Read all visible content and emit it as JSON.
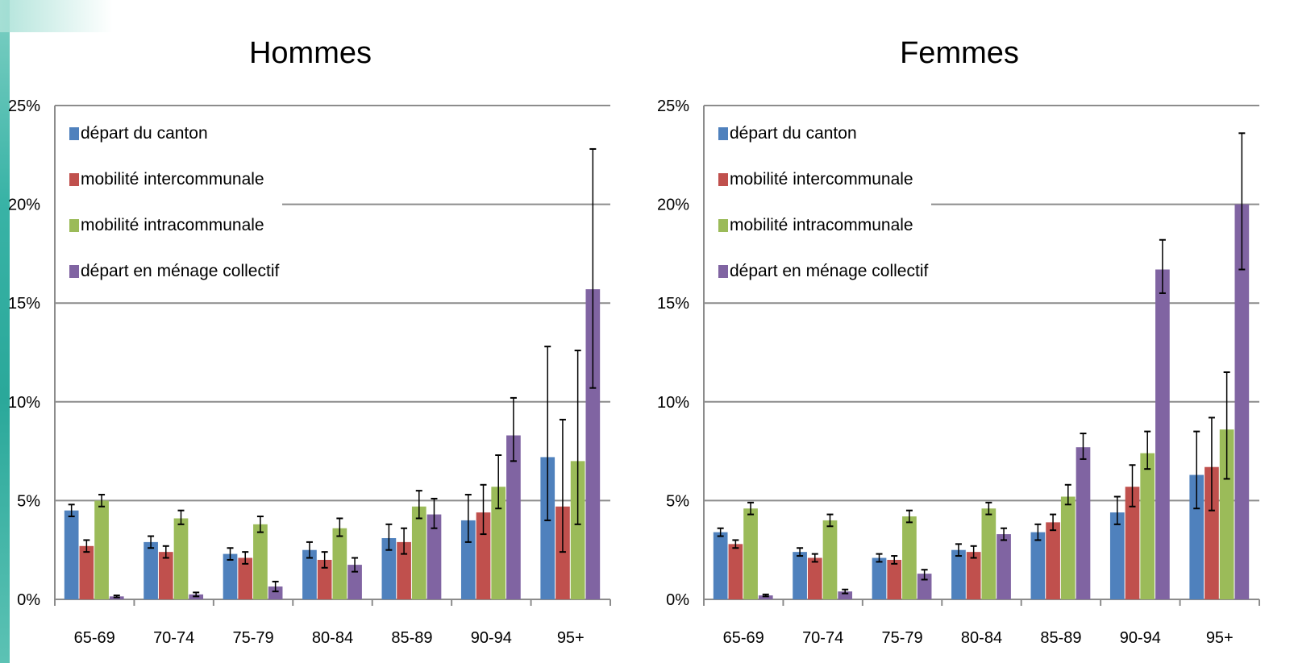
{
  "chart_data": [
    {
      "type": "bar",
      "title": "Hommes",
      "xlabel": "",
      "ylabel": "",
      "categories": [
        "65-69",
        "70-74",
        "75-79",
        "80-84",
        "85-89",
        "90-94",
        "95+"
      ],
      "y_ticks": [
        "0%",
        "5%",
        "10%",
        "15%",
        "20%",
        "25%"
      ],
      "ylim": [
        0,
        25
      ],
      "grid": true,
      "legend_position": "top-left",
      "series": [
        {
          "name": "départ du canton",
          "color": "#4f81bd",
          "values": [
            4.5,
            2.9,
            2.3,
            2.5,
            3.1,
            4.0,
            7.2
          ],
          "error_low": [
            4.2,
            2.6,
            2.0,
            2.1,
            2.5,
            2.9,
            4.0
          ],
          "error_high": [
            4.8,
            3.2,
            2.6,
            2.9,
            3.8,
            5.3,
            12.8
          ]
        },
        {
          "name": "mobilité intercommunale",
          "color": "#c0504d",
          "values": [
            2.7,
            2.4,
            2.1,
            2.0,
            2.9,
            4.4,
            4.7
          ],
          "error_low": [
            2.4,
            2.1,
            1.8,
            1.6,
            2.3,
            3.3,
            2.4
          ],
          "error_high": [
            3.0,
            2.7,
            2.4,
            2.4,
            3.6,
            5.8,
            9.1
          ]
        },
        {
          "name": "mobilité intracommunale",
          "color": "#9bbb59",
          "values": [
            5.0,
            4.1,
            3.8,
            3.6,
            4.7,
            5.7,
            7.0
          ],
          "error_low": [
            4.7,
            3.8,
            3.4,
            3.2,
            4.1,
            4.6,
            3.8
          ],
          "error_high": [
            5.3,
            4.5,
            4.2,
            4.1,
            5.5,
            7.3,
            12.6
          ]
        },
        {
          "name": "départ en ménage collectif",
          "color": "#8064a2",
          "values": [
            0.15,
            0.25,
            0.65,
            1.75,
            4.3,
            8.3,
            15.7
          ],
          "error_low": [
            0.1,
            0.15,
            0.4,
            1.4,
            3.6,
            7.0,
            10.7
          ],
          "error_high": [
            0.2,
            0.35,
            0.9,
            2.1,
            5.1,
            10.2,
            22.8
          ]
        }
      ]
    },
    {
      "type": "bar",
      "title": "Femmes",
      "xlabel": "",
      "ylabel": "",
      "categories": [
        "65-69",
        "70-74",
        "75-79",
        "80-84",
        "85-89",
        "90-94",
        "95+"
      ],
      "y_ticks": [
        "0%",
        "5%",
        "10%",
        "15%",
        "20%",
        "25%"
      ],
      "ylim": [
        0,
        25
      ],
      "grid": true,
      "legend_position": "top-left",
      "series": [
        {
          "name": "départ du canton",
          "color": "#4f81bd",
          "values": [
            3.4,
            2.4,
            2.1,
            2.5,
            3.4,
            4.4,
            6.3
          ],
          "error_low": [
            3.2,
            2.2,
            1.9,
            2.2,
            3.0,
            3.8,
            4.6
          ],
          "error_high": [
            3.6,
            2.6,
            2.3,
            2.8,
            3.8,
            5.2,
            8.5
          ]
        },
        {
          "name": "mobilité intercommunale",
          "color": "#c0504d",
          "values": [
            2.8,
            2.1,
            2.0,
            2.4,
            3.9,
            5.7,
            6.7
          ],
          "error_low": [
            2.6,
            1.9,
            1.8,
            2.1,
            3.5,
            4.7,
            4.5
          ],
          "error_high": [
            3.0,
            2.3,
            2.2,
            2.7,
            4.3,
            6.8,
            9.2
          ]
        },
        {
          "name": "mobilité intracommunale",
          "color": "#9bbb59",
          "values": [
            4.6,
            4.0,
            4.2,
            4.6,
            5.2,
            7.4,
            8.6
          ],
          "error_low": [
            4.3,
            3.7,
            3.9,
            4.3,
            4.8,
            6.6,
            6.1
          ],
          "error_high": [
            4.9,
            4.3,
            4.5,
            4.9,
            5.8,
            8.5,
            11.5
          ]
        },
        {
          "name": "départ en ménage collectif",
          "color": "#8064a2",
          "values": [
            0.2,
            0.4,
            1.3,
            3.3,
            7.7,
            16.7,
            20.0
          ],
          "error_low": [
            0.15,
            0.3,
            1.0,
            3.0,
            7.1,
            15.5,
            16.7
          ],
          "error_high": [
            0.25,
            0.5,
            1.5,
            3.6,
            8.4,
            18.2,
            23.6
          ]
        }
      ]
    }
  ]
}
